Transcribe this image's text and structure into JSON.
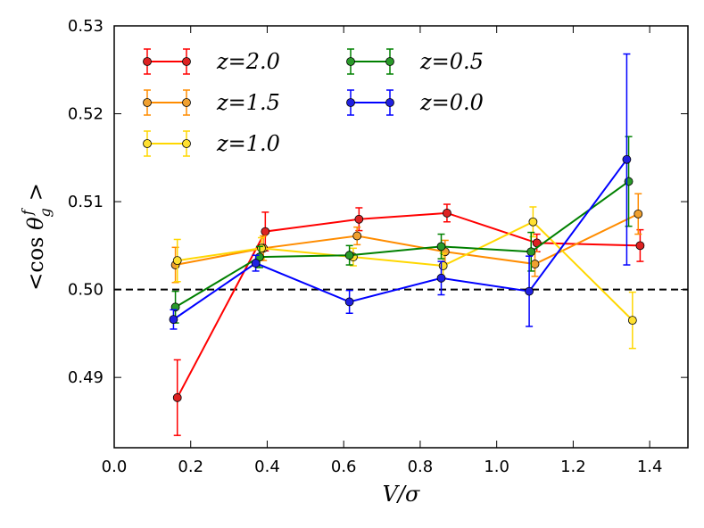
{
  "chart_data": {
    "type": "line",
    "title": "",
    "xlabel": "V/σ",
    "ylabel": "<cos θ_g^f >",
    "xlim": [
      0.0,
      1.5
    ],
    "ylim": [
      0.482,
      0.53
    ],
    "xticks": [
      0.0,
      0.2,
      0.4,
      0.6,
      0.8,
      1.0,
      1.2,
      1.4
    ],
    "xtick_labels": [
      "0.0",
      "0.2",
      "0.4",
      "0.6",
      "0.8",
      "1.0",
      "1.2",
      "1.4"
    ],
    "yticks": [
      0.49,
      0.5,
      0.51,
      0.52,
      0.53
    ],
    "ytick_labels": [
      "0.49",
      "0.50",
      "0.51",
      "0.52",
      "0.53"
    ],
    "reference_line": {
      "y": 0.5,
      "style": "dashed",
      "color": "#000000"
    },
    "legend": {
      "position": "top-left",
      "columns": 2
    },
    "series": [
      {
        "name": "z=2.0",
        "color": "#ff0000",
        "marker_color": "#dd2222",
        "x": [
          0.165,
          0.395,
          0.64,
          0.87,
          1.105,
          1.375
        ],
        "y": [
          0.4877,
          0.5066,
          0.508,
          0.5087,
          0.5053,
          0.505
        ],
        "err": [
          0.0043,
          0.0022,
          0.0013,
          0.001,
          0.001,
          0.0018
        ]
      },
      {
        "name": "z=1.5",
        "color": "#ff8c00",
        "marker_color": "#f0a030",
        "x": [
          0.16,
          0.39,
          0.635,
          0.865,
          1.1,
          1.37
        ],
        "y": [
          0.5028,
          0.5047,
          0.5061,
          0.5043,
          0.5029,
          0.5086
        ],
        "err": [
          0.002,
          0.0014,
          0.001,
          0.0013,
          0.0014,
          0.0023
        ]
      },
      {
        "name": "z=1.0",
        "color": "#ffd700",
        "marker_color": "#ffe030",
        "x": [
          0.165,
          0.385,
          0.625,
          0.86,
          1.095,
          1.355
        ],
        "y": [
          0.5033,
          0.5047,
          0.5037,
          0.5027,
          0.5077,
          0.4965
        ],
        "err": [
          0.0024,
          0.0012,
          0.001,
          0.0014,
          0.0017,
          0.0032
        ]
      },
      {
        "name": "z=0.5",
        "color": "#008000",
        "marker_color": "#2a9a2a",
        "x": [
          0.16,
          0.38,
          0.615,
          0.855,
          1.09,
          1.345
        ],
        "y": [
          0.498,
          0.5037,
          0.5039,
          0.5049,
          0.5043,
          0.5123
        ],
        "err": [
          0.0018,
          0.0012,
          0.0011,
          0.0014,
          0.0022,
          0.0051
        ]
      },
      {
        "name": "z=0.0",
        "color": "#0000ff",
        "marker_color": "#2020e0",
        "x": [
          0.155,
          0.37,
          0.615,
          0.855,
          1.085,
          1.34
        ],
        "y": [
          0.4966,
          0.503,
          0.4986,
          0.5013,
          0.4998,
          0.5148
        ],
        "err": [
          0.0011,
          0.0009,
          0.0013,
          0.0019,
          0.004,
          0.012
        ]
      }
    ]
  }
}
